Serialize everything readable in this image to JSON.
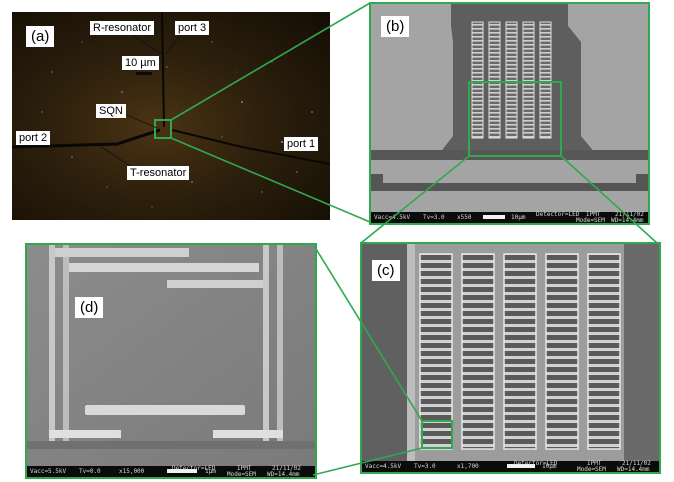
{
  "panels": {
    "a": {
      "tag": "(a)",
      "labels": {
        "r_resonator": "R-resonator",
        "port3": "port 3",
        "scale": "10 µm",
        "sqn": "SQN",
        "port2": "port 2",
        "port1": "port 1",
        "t_resonator": "T-resonator"
      }
    },
    "b": {
      "tag": "(b)",
      "sem": {
        "vacc": "Vacc=4.5kV",
        "tv": "Tv=3.0",
        "mag": "x550",
        "scale": "10µm",
        "detector": "Detector=LED",
        "org": "IPMT",
        "mode": "Mode=SEM",
        "date": "21/11/02",
        "wd": "WD=14.4mm"
      }
    },
    "c": {
      "tag": "(c)",
      "sem": {
        "vacc": "Vacc=4.5kV",
        "tv": "Tv=3.0",
        "mag": "x1,700",
        "scale": "10µm",
        "detector": "Detector=LED",
        "org": "IPMT",
        "mode": "Mode=SEM",
        "date": "21/11/02",
        "wd": "WD=14.4mm"
      }
    },
    "d": {
      "tag": "(d)",
      "sem": {
        "vacc": "Vacc=5.5kV",
        "tv": "Tv=0.0",
        "mag": "x15,000",
        "scale": "1µm",
        "detector": "Detector=LED",
        "org": "IPMT",
        "mode": "Mode=SEM",
        "date": "21/11/02",
        "wd": "WD=14.4mm"
      }
    }
  },
  "colors": {
    "connector": "#2fa84f",
    "highlight": "#2fa84f"
  }
}
